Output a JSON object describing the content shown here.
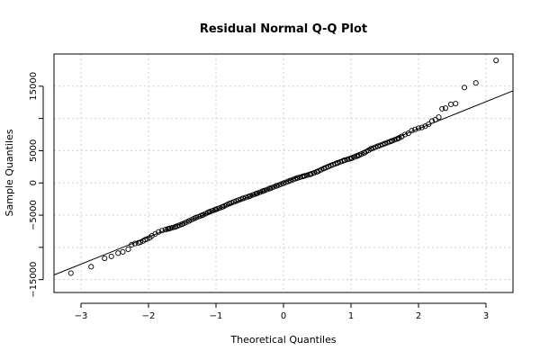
{
  "chart_data": {
    "type": "scatter",
    "title": "Residual Normal Q-Q Plot",
    "xlabel": "Theoretical Quantiles",
    "ylabel": "Sample Quantiles",
    "xlim": [
      -3.4,
      3.4
    ],
    "ylim": [
      -17000,
      20000
    ],
    "xticks": [
      -3,
      -2,
      -1,
      0,
      1,
      2,
      3
    ],
    "xtick_labels": [
      "−3",
      "−2",
      "−1",
      "0",
      "1",
      "2",
      "3"
    ],
    "yticks": [
      -15000,
      -10000,
      -5000,
      0,
      5000,
      10000,
      15000
    ],
    "ytick_labels": [
      "−15000",
      "",
      "−5000",
      "0",
      "5000",
      "",
      "15000"
    ],
    "grid": true,
    "point_style": "open-circle",
    "reference_line": {
      "slope": 4200,
      "intercept": 0
    },
    "points": [
      {
        "x": -3.15,
        "y": -14000
      },
      {
        "x": -2.85,
        "y": -13000
      },
      {
        "x": -2.65,
        "y": -11700
      },
      {
        "x": -2.55,
        "y": -11400
      },
      {
        "x": -2.45,
        "y": -10900
      },
      {
        "x": -2.38,
        "y": -10700
      },
      {
        "x": -2.3,
        "y": -10300
      },
      {
        "x": -2.25,
        "y": -9600
      },
      {
        "x": -2.2,
        "y": -9400
      },
      {
        "x": -2.15,
        "y": -9300
      },
      {
        "x": -2.12,
        "y": -9200
      },
      {
        "x": -2.08,
        "y": -9000
      },
      {
        "x": -2.05,
        "y": -8800
      },
      {
        "x": -2.02,
        "y": -8700
      },
      {
        "x": -1.98,
        "y": -8500
      },
      {
        "x": -1.95,
        "y": -8200
      },
      {
        "x": -1.9,
        "y": -7900
      },
      {
        "x": -1.85,
        "y": -7600
      },
      {
        "x": -1.8,
        "y": -7400
      },
      {
        "x": -1.7,
        "y": -7100
      },
      {
        "x": -1.6,
        "y": -6800
      },
      {
        "x": -1.5,
        "y": -6400
      },
      {
        "x": -1.4,
        "y": -5900
      },
      {
        "x": -1.3,
        "y": -5400
      },
      {
        "x": -1.2,
        "y": -5000
      },
      {
        "x": -1.1,
        "y": -4500
      },
      {
        "x": -1.0,
        "y": -4100
      },
      {
        "x": -0.9,
        "y": -3700
      },
      {
        "x": -0.8,
        "y": -3200
      },
      {
        "x": -0.7,
        "y": -2800
      },
      {
        "x": -0.6,
        "y": -2400
      },
      {
        "x": -0.5,
        "y": -2050
      },
      {
        "x": -0.4,
        "y": -1650
      },
      {
        "x": -0.3,
        "y": -1250
      },
      {
        "x": -0.2,
        "y": -850
      },
      {
        "x": -0.1,
        "y": -450
      },
      {
        "x": 0.0,
        "y": -50
      },
      {
        "x": 0.1,
        "y": 350
      },
      {
        "x": 0.2,
        "y": 750
      },
      {
        "x": 0.3,
        "y": 1050
      },
      {
        "x": 0.4,
        "y": 1350
      },
      {
        "x": 0.5,
        "y": 1750
      },
      {
        "x": 0.6,
        "y": 2250
      },
      {
        "x": 0.7,
        "y": 2700
      },
      {
        "x": 0.8,
        "y": 3100
      },
      {
        "x": 0.9,
        "y": 3500
      },
      {
        "x": 1.0,
        "y": 3800
      },
      {
        "x": 1.1,
        "y": 4200
      },
      {
        "x": 1.2,
        "y": 4700
      },
      {
        "x": 1.3,
        "y": 5300
      },
      {
        "x": 1.4,
        "y": 5700
      },
      {
        "x": 1.5,
        "y": 6100
      },
      {
        "x": 1.6,
        "y": 6500
      },
      {
        "x": 1.7,
        "y": 6900
      },
      {
        "x": 1.75,
        "y": 7200
      },
      {
        "x": 1.8,
        "y": 7500
      },
      {
        "x": 1.85,
        "y": 7700
      },
      {
        "x": 1.9,
        "y": 8100
      },
      {
        "x": 1.95,
        "y": 8300
      },
      {
        "x": 2.0,
        "y": 8500
      },
      {
        "x": 2.05,
        "y": 8600
      },
      {
        "x": 2.1,
        "y": 8800
      },
      {
        "x": 2.15,
        "y": 9100
      },
      {
        "x": 2.2,
        "y": 9600
      },
      {
        "x": 2.25,
        "y": 9800
      },
      {
        "x": 2.3,
        "y": 10200
      },
      {
        "x": 2.35,
        "y": 11500
      },
      {
        "x": 2.4,
        "y": 11600
      },
      {
        "x": 2.48,
        "y": 12200
      },
      {
        "x": 2.55,
        "y": 12300
      },
      {
        "x": 2.68,
        "y": 14800
      },
      {
        "x": 2.85,
        "y": 15500
      },
      {
        "x": 3.15,
        "y": 19000
      }
    ]
  }
}
